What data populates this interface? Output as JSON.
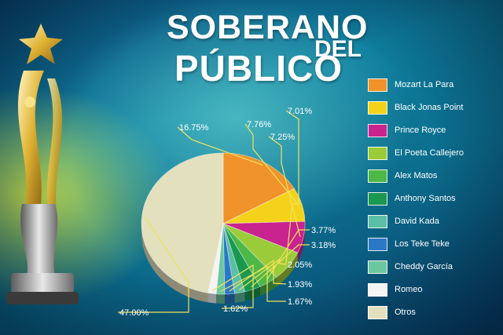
{
  "title": {
    "line1": "SOBERANO",
    "line2": "DEL",
    "line3": "PÚBLICO"
  },
  "chart_data": {
    "type": "pie",
    "title": "SOBERANO DEL PÚBLICO",
    "legend_position": "right",
    "slices": [
      {
        "name": "Mozart La Para",
        "value": 16.75,
        "label": "16.75%",
        "color": "#f0932a"
      },
      {
        "name": "Black Jonas Point",
        "value": 7.76,
        "label": "7.76%",
        "color": "#f5d21a"
      },
      {
        "name": "Prince Royce",
        "value": 7.25,
        "label": "7.25%",
        "color": "#c8238f"
      },
      {
        "name": "El Poeta Callejero",
        "value": 7.01,
        "label": "7.01%",
        "color": "#9ccb3a"
      },
      {
        "name": "Alex Matos",
        "value": 3.77,
        "label": "3.77%",
        "color": "#4db848"
      },
      {
        "name": "Anthony Santos",
        "value": 3.18,
        "label": "3.18%",
        "color": "#1a9850"
      },
      {
        "name": "David Kada",
        "value": 2.05,
        "label": "2.05%",
        "color": "#5bbfa6"
      },
      {
        "name": "Los Teke Teke",
        "value": 1.93,
        "label": "1.93%",
        "color": "#2a79c5"
      },
      {
        "name": "Cheddy García",
        "value": 1.67,
        "label": "1.67%",
        "color": "#6cc7a0"
      },
      {
        "name": "Romeo",
        "value": 1.62,
        "label": "1.62%",
        "color": "#f4f4f4"
      },
      {
        "name": "Otros",
        "value": 47.0,
        "label": "47.00%",
        "color": "#e3e0bd"
      }
    ]
  }
}
